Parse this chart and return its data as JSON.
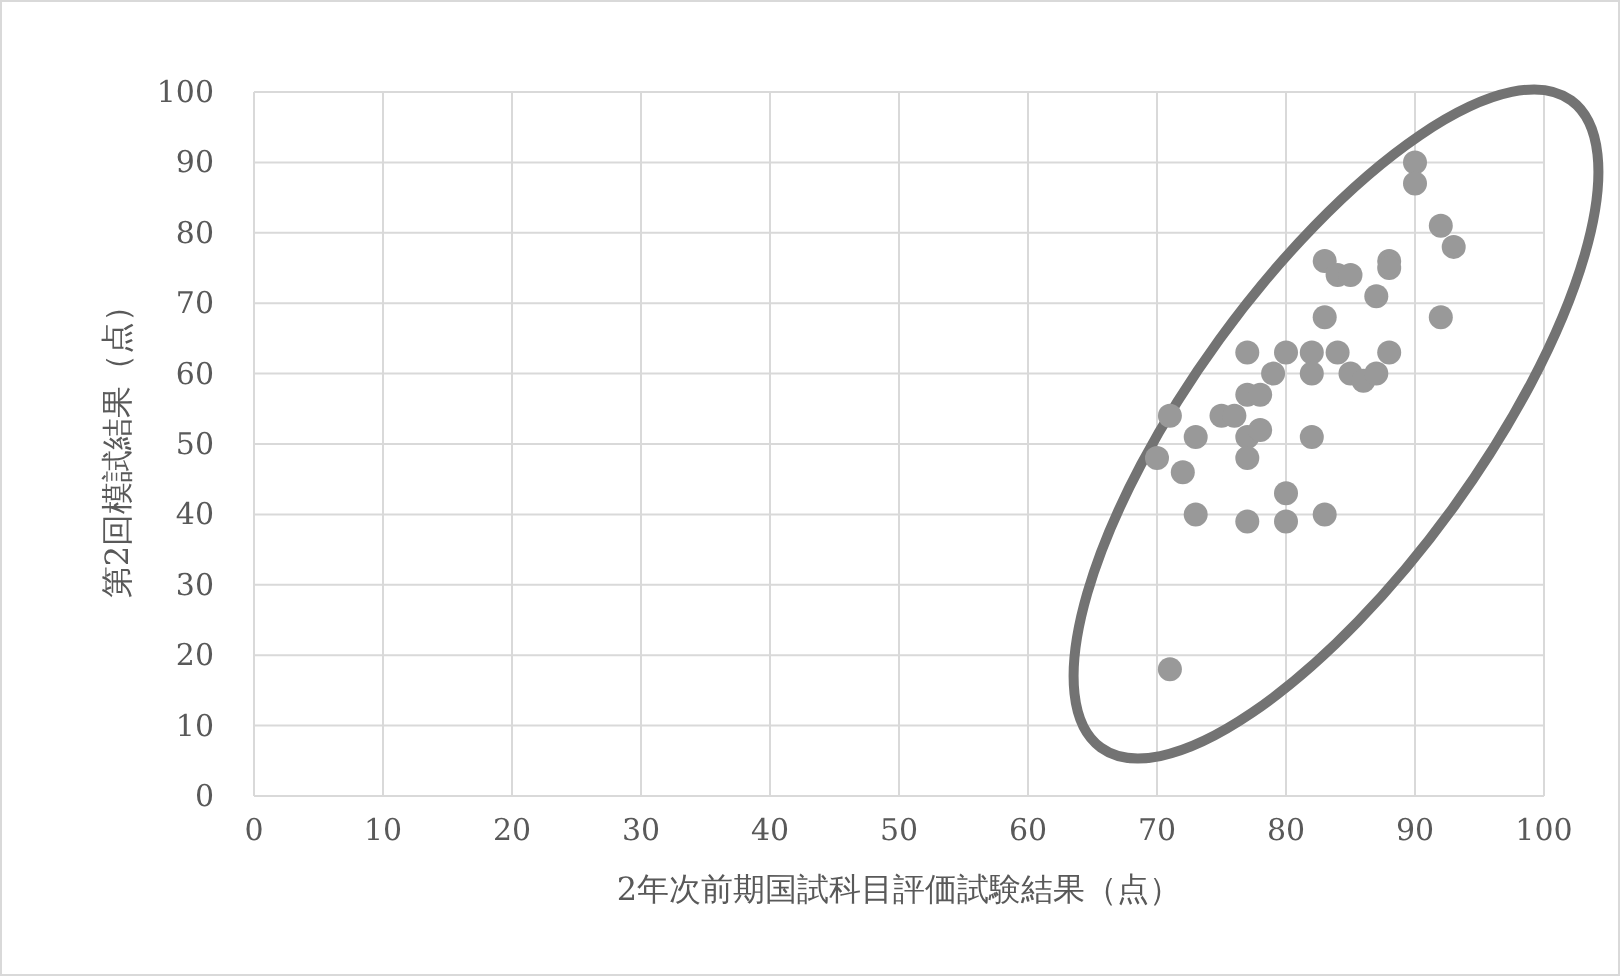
{
  "chart_data": {
    "type": "scatter",
    "xlabel": "2年次前期国試科目評価試験結果（点）",
    "ylabel": "第2回模試結果（点）",
    "xlim": [
      0,
      100
    ],
    "ylim": [
      0,
      100
    ],
    "xticks": [
      0,
      10,
      20,
      30,
      40,
      50,
      60,
      70,
      80,
      90,
      100
    ],
    "yticks": [
      0,
      10,
      20,
      30,
      40,
      50,
      60,
      70,
      80,
      90,
      100
    ],
    "grid": true,
    "marker": "circle",
    "series": [
      {
        "color": "#999999",
        "x": [
          70,
          71,
          71,
          72,
          73,
          73,
          75,
          76,
          77,
          77,
          77,
          77,
          77,
          78,
          78,
          79,
          80,
          80,
          80,
          82,
          82,
          82,
          83,
          83,
          83,
          84,
          84,
          85,
          85,
          86,
          87,
          87,
          88,
          88,
          88,
          90,
          90,
          92,
          92,
          93
        ],
        "values": [
          48,
          54,
          18,
          46,
          51,
          40,
          54,
          54,
          63,
          57,
          51,
          48,
          39,
          57,
          52,
          60,
          63,
          43,
          39,
          63,
          60,
          51,
          76,
          68,
          40,
          74,
          63,
          74,
          60,
          59,
          71,
          60,
          76,
          75,
          63,
          90,
          87,
          81,
          68,
          78
        ]
      }
    ]
  }
}
